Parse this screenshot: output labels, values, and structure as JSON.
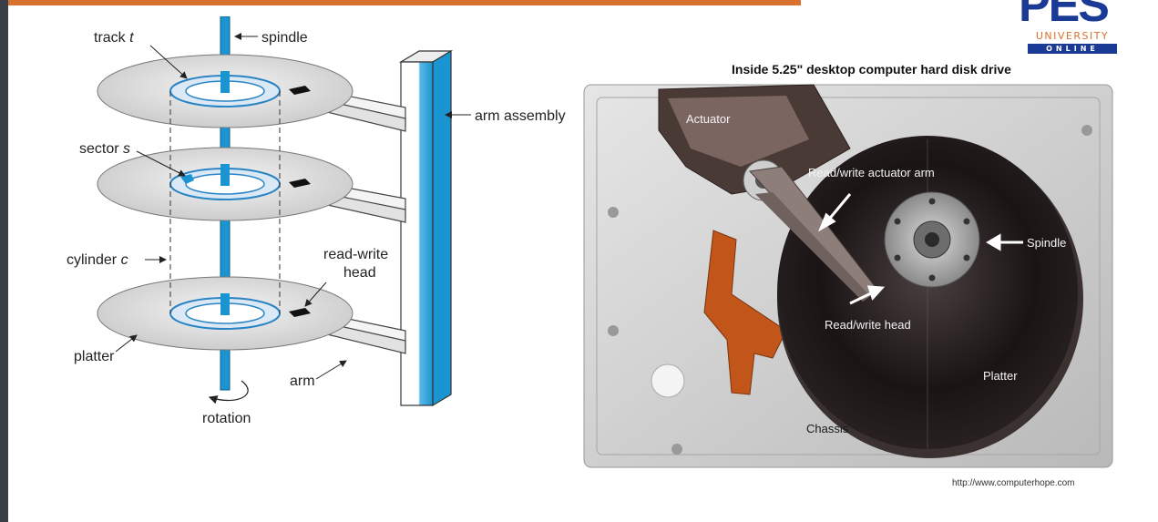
{
  "branding": {
    "logo_main": "PES",
    "logo_sub": "UNIVERSITY",
    "logo_tag": "ONLINE",
    "brand_blue": "#1b3a96",
    "brand_orange": "#d8702e"
  },
  "diagram": {
    "labels": {
      "track_prefix": "track ",
      "track_var": "t",
      "spindle": "spindle",
      "arm_assembly": "arm assembly",
      "sector_prefix": "sector ",
      "sector_var": "s",
      "cylinder_prefix": "cylinder ",
      "cylinder_var": "c",
      "read_write_line1": "read-write",
      "read_write_line2": "head",
      "platter": "platter",
      "arm": "arm",
      "rotation": "rotation"
    }
  },
  "photo": {
    "title": "Inside 5.25\" desktop computer hard disk drive",
    "labels": {
      "actuator": "Actuator",
      "actuator_arm": "Read/write actuator arm",
      "spindle": "Spindle",
      "head": "Read/write head",
      "platter": "Platter",
      "chassis": "Chassis"
    },
    "credit": "http://www.computerhope.com"
  }
}
